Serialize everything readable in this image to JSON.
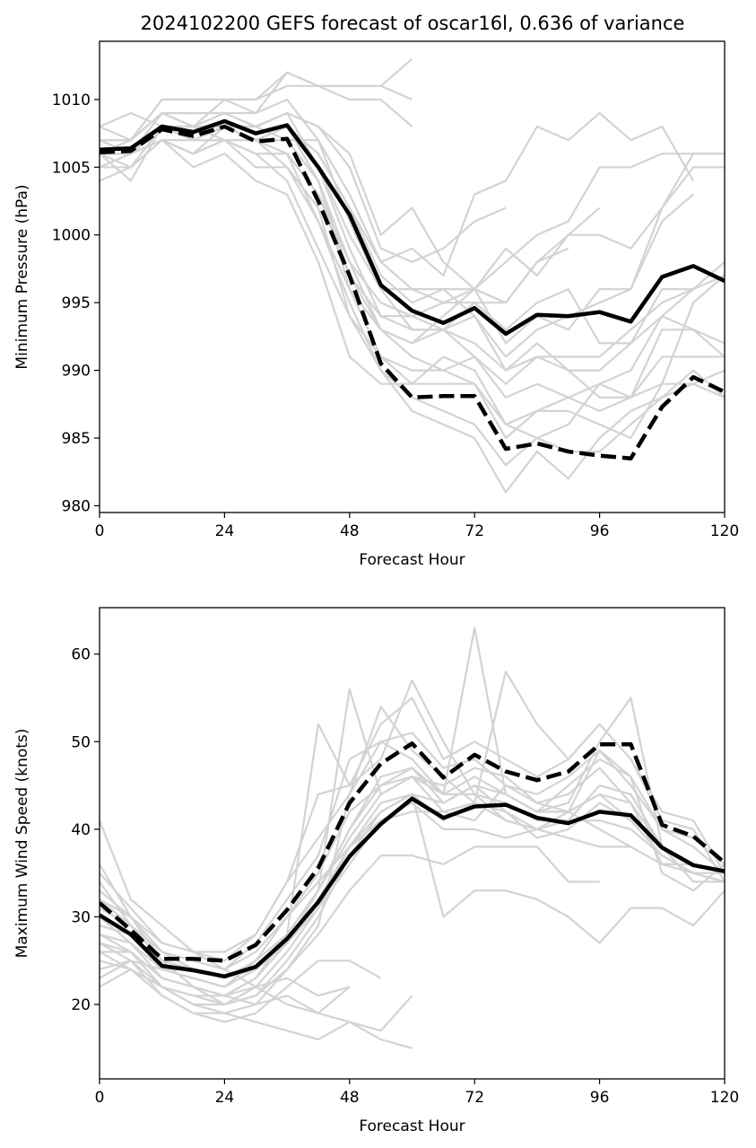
{
  "chart_data": [
    {
      "type": "line",
      "title": "2024102200 GEFS forecast of oscar16l, 0.636 of variance",
      "xlabel": "Forecast Hour",
      "ylabel": "Minimum Pressure (hPa)",
      "xlim": [
        0,
        120
      ],
      "ylim": [
        979.5,
        1014.3
      ],
      "xticks": [
        0,
        24,
        48,
        72,
        96,
        120
      ],
      "yticks": [
        980,
        985,
        990,
        995,
        1000,
        1005,
        1010
      ],
      "grid": false,
      "legend": "none",
      "colors": {
        "members": "#d3d3d3",
        "highlight": "#000000"
      },
      "x": [
        0,
        6,
        12,
        18,
        24,
        30,
        36,
        42,
        48,
        54,
        60,
        66,
        72,
        78,
        84,
        90,
        96,
        102,
        108,
        114,
        120
      ],
      "series": [
        {
          "style": "solid",
          "values": [
            1006.3,
            1006.4,
            1008.0,
            1007.6,
            1008.4,
            1007.5,
            1008.1,
            1005.0,
            1001.5,
            996.3,
            994.4,
            993.5,
            994.6,
            992.7,
            994.1,
            994.0,
            994.3,
            993.6,
            996.9,
            997.7,
            996.6
          ]
        },
        {
          "style": "dashed",
          "values": [
            1006.1,
            1006.2,
            1007.8,
            1007.3,
            1008.0,
            1006.9,
            1007.1,
            1002.5,
            997.0,
            990.5,
            988.0,
            988.1,
            988.1,
            984.2,
            984.6,
            984.0,
            983.7,
            983.5,
            987.3,
            989.5,
            988.4
          ]
        }
      ],
      "members": [
        [
          1008,
          1009,
          1008,
          1007,
          1007,
          1006,
          1004,
          999,
          994,
          991,
          990,
          990,
          989,
          986,
          985,
          986,
          989,
          988,
          989,
          989,
          990
        ],
        [
          1007,
          1007,
          1009,
          1008,
          1009,
          1008,
          1007,
          1007,
          1001,
          996,
          993,
          993,
          991,
          989,
          991,
          990,
          988,
          988,
          993,
          993,
          992
        ],
        [
          1006,
          1005,
          1008,
          1007,
          1008,
          1007,
          1008,
          1006,
          1002,
          997,
          995,
          996,
          994,
          991,
          993,
          994,
          995,
          996,
          1002,
          1005,
          1005
        ],
        [
          1005,
          1006,
          1007,
          1006,
          1007,
          1006,
          1006,
          1003,
          998,
          993,
          991,
          990,
          991,
          988,
          989,
          988,
          987,
          988,
          991,
          991,
          991
        ],
        [
          1007,
          1006,
          1009,
          1009,
          1009,
          1009,
          1010,
          1007,
          1003,
          998,
          996,
          995,
          996,
          995,
          998,
          1000,
          1000,
          999,
          1002,
          1006,
          1006
        ],
        [
          1006,
          1007,
          1009,
          1009,
          1009,
          1008,
          1009,
          1008,
          1005,
          999,
          998,
          999,
          1001,
          1002
        ],
        [
          1004,
          1005,
          1007,
          1005,
          1006,
          1004,
          1003,
          998,
          991,
          989,
          989,
          991,
          990,
          986,
          987,
          988,
          989,
          990,
          994,
          993,
          991
        ],
        [
          1006,
          1006,
          1008,
          1008,
          1010,
          1009,
          1012,
          1011,
          1011,
          1011,
          1013
        ],
        [
          1005,
          1005,
          1007,
          1006,
          1008,
          1007,
          1005,
          1001,
          996,
          993,
          992,
          993,
          994,
          990,
          991,
          991,
          991,
          993,
          995,
          996,
          998
        ],
        [
          1006,
          1004,
          1008,
          1007,
          1008,
          1007,
          1008,
          1004,
          996,
          991,
          989,
          989,
          989,
          985,
          987,
          987,
          986,
          985,
          989,
          995,
          997
        ],
        [
          1007,
          1006,
          1008,
          1008,
          1008,
          1008,
          1009,
          1005,
          1000,
          996,
          996,
          996,
          996,
          992,
          994,
          993,
          996,
          996,
          1001,
          1003
        ],
        [
          1006,
          1007,
          1009,
          1008,
          1007,
          1007,
          1007,
          1004,
          997,
          994,
          993,
          993,
          992,
          990,
          992,
          990,
          990,
          992,
          994,
          996,
          997
        ],
        [
          1005,
          1006,
          1008,
          1007,
          1007,
          1006,
          1006,
          1001,
          995,
          990,
          987,
          986,
          985,
          981,
          984,
          982,
          985,
          987,
          988,
          989,
          988
        ],
        [
          1007,
          1007,
          1010,
          1010,
          1010,
          1010,
          1011,
          1011,
          1011,
          1011,
          1010
        ],
        [
          1007,
          1006,
          1009,
          1008,
          1008,
          1007,
          1008,
          1005,
          999,
          994,
          994,
          995,
          995,
          993,
          995,
          996,
          992,
          992,
          996,
          996
        ],
        [
          1005,
          1006,
          1007,
          1006,
          1007,
          1005,
          1005,
          1002,
          994,
          990,
          988,
          987,
          986,
          983,
          985,
          984,
          984,
          986,
          988,
          990,
          988
        ],
        [
          1006,
          1006,
          1008,
          1008,
          1008,
          1007,
          1008,
          1006,
          1002,
          998,
          999,
          997,
          1003,
          1004,
          1008,
          1007,
          1009,
          1007,
          1008,
          1004
        ],
        [
          1006,
          1006,
          1008,
          1007,
          1008,
          1008,
          1009,
          1008,
          1006,
          1000,
          1002,
          998,
          996,
          999,
          997,
          1000,
          1002
        ],
        [
          1008,
          1007,
          1010,
          1010,
          1010,
          1010,
          1012,
          1011,
          1010,
          1010,
          1008
        ],
        [
          1006,
          1006,
          1008,
          1007,
          1008,
          1007,
          1007,
          1004,
          998,
          995,
          994,
          993,
          995,
          995,
          998,
          999
        ],
        [
          1005,
          1006,
          1007,
          1007,
          1008,
          1007,
          1006,
          1003,
          997,
          993,
          992,
          994,
          996,
          998,
          1000,
          1001,
          1005,
          1005,
          1006,
          1006,
          1006
        ]
      ]
    },
    {
      "type": "line",
      "title": "",
      "xlabel": "Forecast Hour",
      "ylabel": "Maximum Wind Speed (knots)",
      "xlim": [
        0,
        120
      ],
      "ylim": [
        11.5,
        65.3
      ],
      "xticks": [
        0,
        24,
        48,
        72,
        96,
        120
      ],
      "yticks": [
        20,
        30,
        40,
        50,
        60
      ],
      "grid": false,
      "legend": "none",
      "colors": {
        "members": "#d3d3d3",
        "highlight": "#000000"
      },
      "x": [
        0,
        6,
        12,
        18,
        24,
        30,
        36,
        42,
        48,
        54,
        60,
        66,
        72,
        78,
        84,
        90,
        96,
        102,
        108,
        114,
        120
      ],
      "series": [
        {
          "style": "solid",
          "values": [
            30.2,
            28.0,
            24.4,
            23.9,
            23.2,
            24.3,
            27.5,
            31.7,
            36.9,
            40.6,
            43.5,
            41.3,
            42.6,
            42.8,
            41.3,
            40.7,
            42.0,
            41.6,
            37.9,
            35.9,
            35.2
          ]
        },
        {
          "style": "dashed",
          "values": [
            31.6,
            28.5,
            25.2,
            25.2,
            25.0,
            26.8,
            30.8,
            35.6,
            43.0,
            47.5,
            49.8,
            45.9,
            48.5,
            46.6,
            45.6,
            46.6,
            49.7,
            49.7,
            40.5,
            39.2,
            36.2
          ]
        }
      ],
      "members": [
        [
          41,
          32,
          29,
          26,
          24,
          22,
          20,
          19,
          18,
          17,
          21
        ],
        [
          36,
          30,
          25,
          22,
          21,
          23,
          28,
          52,
          45,
          48,
          57,
          50,
          44,
          41,
          40,
          42,
          49,
          46,
          35,
          33,
          36
        ],
        [
          22,
          24,
          22,
          20,
          19,
          20,
          24,
          29,
          44,
          50,
          48,
          44,
          63,
          44,
          42,
          43,
          50,
          55,
          38,
          34,
          34
        ],
        [
          25,
          24,
          21,
          19,
          19,
          18,
          17,
          16,
          18,
          16,
          15
        ],
        [
          28,
          27,
          23,
          22,
          20,
          21,
          25,
          30,
          37,
          42,
          44,
          30,
          33,
          33,
          32,
          30,
          27,
          31,
          31,
          29,
          33
        ],
        [
          33,
          30,
          27,
          26,
          26,
          28,
          34,
          39,
          44,
          54,
          49,
          46,
          43,
          58,
          52,
          48,
          52,
          48,
          41,
          40,
          34
        ],
        [
          29,
          28,
          24,
          23,
          22,
          24,
          28,
          33,
          40,
          46,
          47,
          43,
          45,
          42,
          40,
          41,
          45,
          44,
          38,
          36,
          35
        ],
        [
          27,
          26,
          23,
          22,
          21,
          20,
          21,
          19,
          22
        ],
        [
          35,
          31,
          27,
          26,
          25,
          28,
          34,
          44,
          45,
          52,
          55,
          48,
          50,
          48,
          46,
          48,
          52,
          48,
          42,
          41,
          35
        ],
        [
          24,
          25,
          22,
          21,
          20,
          22,
          26,
          31,
          38,
          41,
          43,
          40,
          40,
          39,
          40,
          42,
          44,
          43,
          36,
          36,
          35
        ],
        [
          31,
          29,
          25,
          24,
          23,
          24,
          28,
          33,
          39,
          44,
          46,
          42,
          41,
          45,
          44,
          46,
          49,
          45,
          40,
          39,
          36
        ],
        [
          26,
          26,
          23,
          22,
          21,
          23,
          27,
          33,
          56,
          44,
          46,
          45,
          47,
          46,
          43,
          42,
          40,
          38,
          36,
          35,
          34
        ],
        [
          32,
          29,
          26,
          25,
          24,
          27,
          32,
          37,
          48,
          50,
          51,
          47,
          48,
          45,
          43,
          44,
          47,
          43,
          38,
          36,
          35
        ],
        [
          23,
          25,
          21,
          19,
          18,
          19,
          22,
          25,
          25,
          23
        ],
        [
          30,
          27,
          24,
          23,
          22,
          25,
          30,
          35,
          42,
          45,
          46,
          44,
          46,
          44,
          42,
          45,
          48,
          46,
          40,
          38,
          35
        ],
        [
          34,
          29,
          26,
          25,
          24,
          26,
          30,
          34,
          38,
          42,
          44,
          41,
          43,
          42,
          39,
          40,
          43,
          41,
          37,
          35,
          34
        ],
        [
          28,
          26,
          22,
          20,
          20,
          21,
          24,
          28,
          33,
          37,
          37,
          36,
          38,
          38,
          38,
          34,
          34
        ],
        [
          27,
          25,
          24,
          24,
          23,
          25,
          28,
          33,
          40,
          45,
          47,
          44,
          44,
          43,
          41,
          41,
          41,
          40,
          37,
          35,
          34
        ],
        [
          29,
          28,
          24,
          23,
          22,
          24,
          27,
          31,
          36,
          41,
          42,
          42,
          43,
          41,
          40,
          39,
          38,
          38,
          36,
          36,
          35
        ],
        [
          26,
          24,
          22,
          21,
          21,
          22,
          23,
          21,
          22
        ],
        [
          32,
          30,
          26,
          24,
          23,
          24,
          27,
          32,
          38,
          43,
          44,
          43,
          45,
          44,
          42,
          42,
          44,
          41,
          37,
          35,
          35
        ]
      ]
    }
  ]
}
